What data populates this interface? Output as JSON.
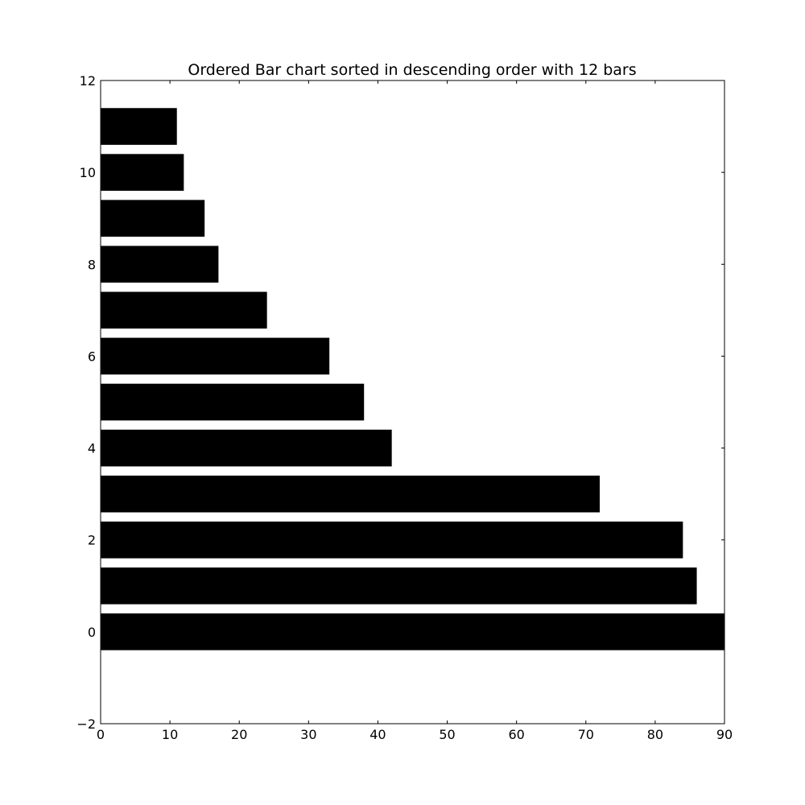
{
  "chart_data": {
    "type": "bar",
    "orientation": "horizontal",
    "title": "Ordered Bar chart sorted in descending order with 12 bars",
    "xlabel": "",
    "ylabel": "",
    "categories": [
      0,
      1,
      2,
      3,
      4,
      5,
      6,
      7,
      8,
      9,
      10,
      11
    ],
    "values": [
      90,
      86,
      84,
      72,
      42,
      38,
      33,
      24,
      17,
      15,
      12,
      11
    ],
    "xlim": [
      0,
      90
    ],
    "ylim": [
      -2,
      12
    ],
    "x_ticks": [
      "0",
      "10",
      "20",
      "30",
      "40",
      "50",
      "60",
      "70",
      "80",
      "90"
    ],
    "y_ticks": [
      "−2",
      "0",
      "2",
      "4",
      "6",
      "8",
      "10",
      "12"
    ],
    "grid": false,
    "legend": "none",
    "colors": {
      "bar": "#000000",
      "background": "#ffffff",
      "axes": "#000000"
    }
  }
}
